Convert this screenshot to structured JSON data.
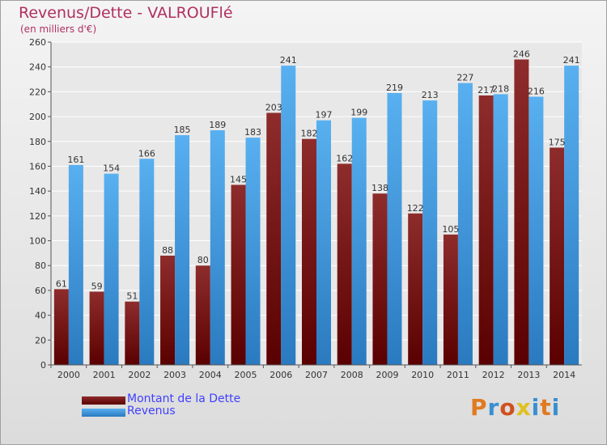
{
  "header": {
    "title": "Revenus/Dette - VALROUFlé",
    "subtitle": "(en milliers d'€)"
  },
  "legend": [
    {
      "label": "Montant de la Dette",
      "color": "#7a1a1a"
    },
    {
      "label": "Revenus",
      "color": "#3a9ae0"
    }
  ],
  "logo": {
    "text": "Proxiti",
    "colors": [
      "#e07a20",
      "#3a8fd0",
      "#d05020",
      "#e0c020",
      "#3a8fd0",
      "#e07a20",
      "#3a8fd0"
    ]
  },
  "chart_data": {
    "type": "bar",
    "categories": [
      "2000",
      "2001",
      "2002",
      "2003",
      "2004",
      "2005",
      "2006",
      "2007",
      "2008",
      "2009",
      "2010",
      "2011",
      "2012",
      "2013",
      "2014"
    ],
    "series": [
      {
        "name": "Montant de la Dette",
        "color": "#7a1a1a",
        "values": [
          61,
          59,
          51,
          88,
          80,
          145,
          203,
          182,
          162,
          138,
          122,
          105,
          217,
          246,
          175
        ]
      },
      {
        "name": "Revenus",
        "color": "#3a9ae0",
        "values": [
          161,
          154,
          166,
          185,
          189,
          183,
          241,
          197,
          199,
          219,
          213,
          227,
          218,
          216,
          241
        ]
      }
    ],
    "ylim": [
      0,
      260
    ],
    "yticks": [
      0,
      20,
      40,
      60,
      80,
      100,
      120,
      140,
      160,
      180,
      200,
      220,
      240,
      260
    ],
    "grid": true,
    "legend_position": "bottom-left"
  }
}
